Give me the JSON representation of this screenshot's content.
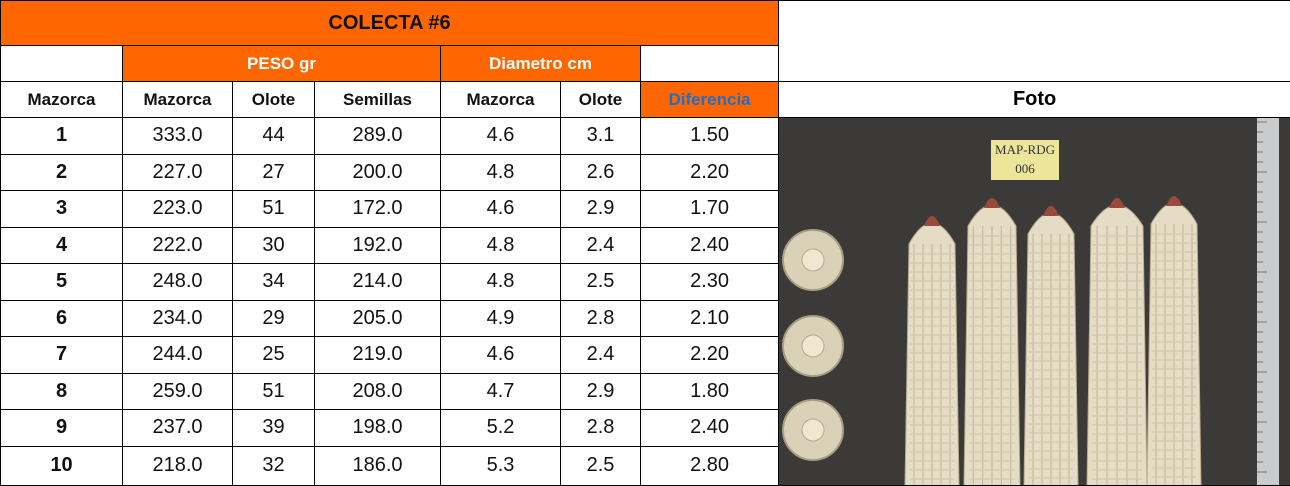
{
  "table": {
    "title": "COLECTA #6",
    "groups": [
      "PESO gr",
      "Diametro cm"
    ],
    "headers": [
      "Mazorca",
      "Mazorca",
      "Olote",
      "Semillas",
      "Mazorca",
      "Olote",
      "Diferencia",
      "Foto"
    ],
    "rows": [
      [
        "1",
        "333.0",
        "44",
        "289.0",
        "4.6",
        "3.1",
        "1.50"
      ],
      [
        "2",
        "227.0",
        "27",
        "200.0",
        "4.8",
        "2.6",
        "2.20"
      ],
      [
        "3",
        "223.0",
        "51",
        "172.0",
        "4.6",
        "2.9",
        "1.70"
      ],
      [
        "4",
        "222.0",
        "30",
        "192.0",
        "4.8",
        "2.4",
        "2.40"
      ],
      [
        "5",
        "248.0",
        "34",
        "214.0",
        "4.8",
        "2.5",
        "2.30"
      ],
      [
        "6",
        "234.0",
        "29",
        "205.0",
        "4.9",
        "2.8",
        "2.10"
      ],
      [
        "7",
        "244.0",
        "25",
        "219.0",
        "4.6",
        "2.4",
        "2.20"
      ],
      [
        "8",
        "259.0",
        "51",
        "208.0",
        "4.7",
        "2.9",
        "1.80"
      ],
      [
        "9",
        "237.0",
        "39",
        "198.0",
        "5.2",
        "2.8",
        "2.40"
      ],
      [
        "10",
        "218.0",
        "32",
        "186.0",
        "5.3",
        "2.5",
        "2.80"
      ]
    ]
  },
  "photo": {
    "label": [
      "MAP-RDG",
      "006"
    ]
  }
}
